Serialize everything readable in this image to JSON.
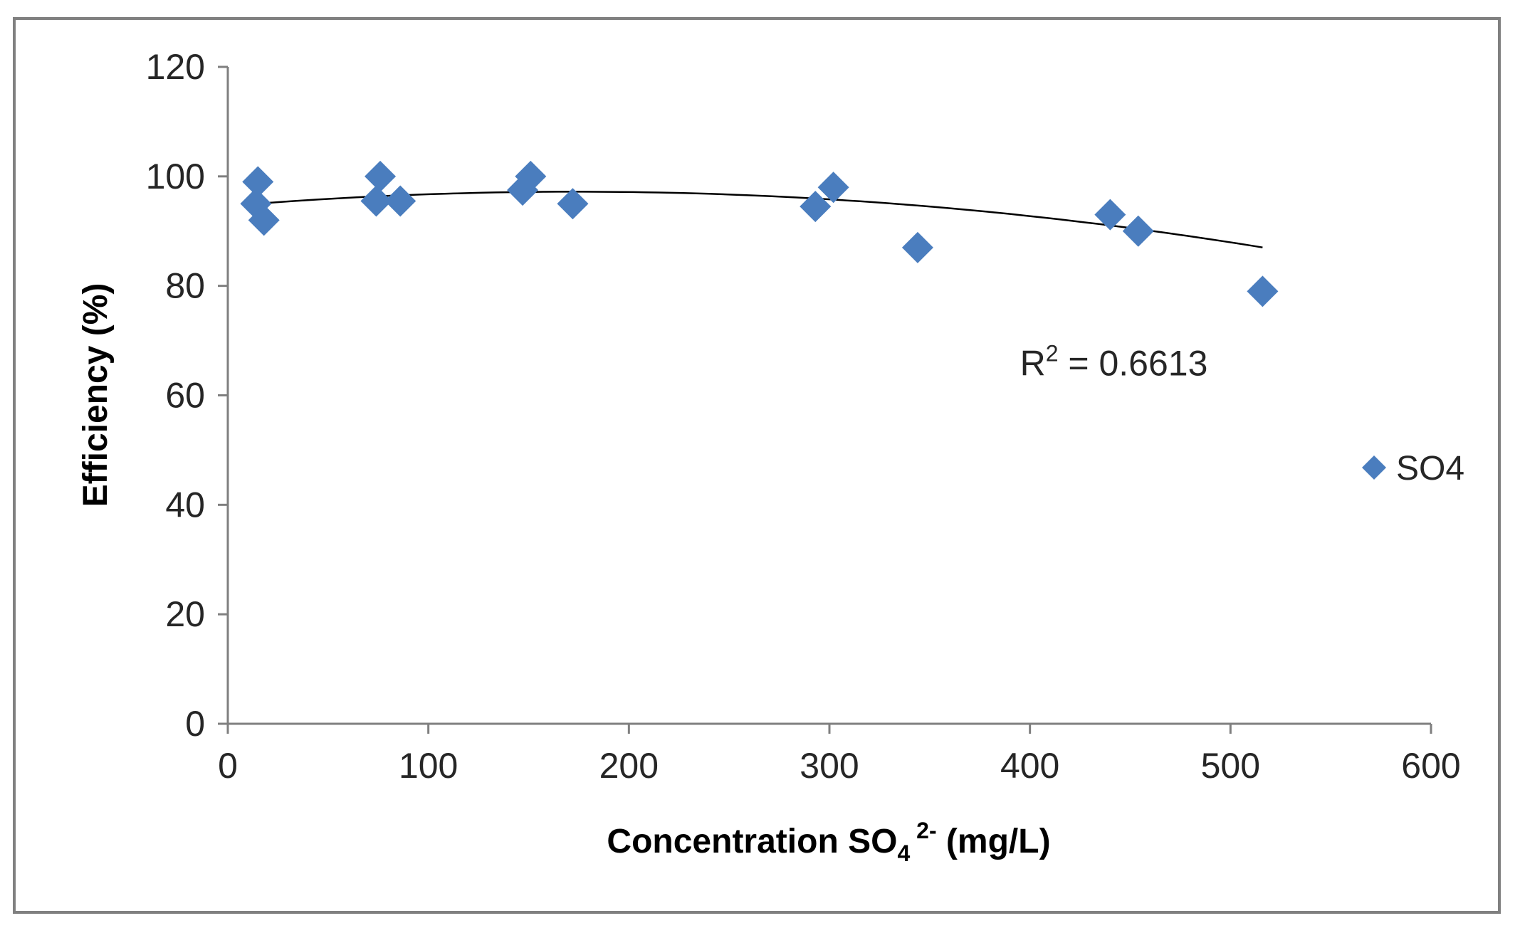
{
  "chart_data": {
    "type": "scatter",
    "title": "",
    "xlabel": {
      "main": "Concentration SO",
      "sub": "4",
      "sup": " 2-",
      "unit": " (mg/L)"
    },
    "ylabel": "Efficiency (%)",
    "xlim": [
      0,
      600
    ],
    "ylim": [
      0,
      120
    ],
    "xticks": [
      0,
      100,
      200,
      300,
      400,
      500,
      600
    ],
    "yticks": [
      0,
      20,
      40,
      60,
      80,
      100,
      120
    ],
    "grid": false,
    "legend": {
      "position": "right",
      "label": "SO4"
    },
    "series": [
      {
        "name": "SO4",
        "color": "#4a7dbe",
        "marker": "diamond",
        "points": [
          {
            "x": 15,
            "y": 99
          },
          {
            "x": 14,
            "y": 95
          },
          {
            "x": 18,
            "y": 92
          },
          {
            "x": 74,
            "y": 95.5
          },
          {
            "x": 76,
            "y": 100
          },
          {
            "x": 86,
            "y": 95.5
          },
          {
            "x": 147,
            "y": 97.5
          },
          {
            "x": 151,
            "y": 100
          },
          {
            "x": 172,
            "y": 95
          },
          {
            "x": 293,
            "y": 94.5
          },
          {
            "x": 302,
            "y": 98
          },
          {
            "x": 344,
            "y": 87
          },
          {
            "x": 440,
            "y": 93
          },
          {
            "x": 454,
            "y": 90
          },
          {
            "x": 516,
            "y": 79
          }
        ]
      }
    ],
    "trendline": {
      "type": "polynomial-2",
      "color": "#000000",
      "coefficients": {
        "a": -8.66e-05,
        "b": 0.03,
        "c": 94.6
      },
      "x_range": [
        14,
        516
      ]
    },
    "annotations": [
      {
        "text_main": "R",
        "text_sup": "2",
        "text_rest": " = 0.6613",
        "x": 395,
        "y": 66
      }
    ]
  }
}
